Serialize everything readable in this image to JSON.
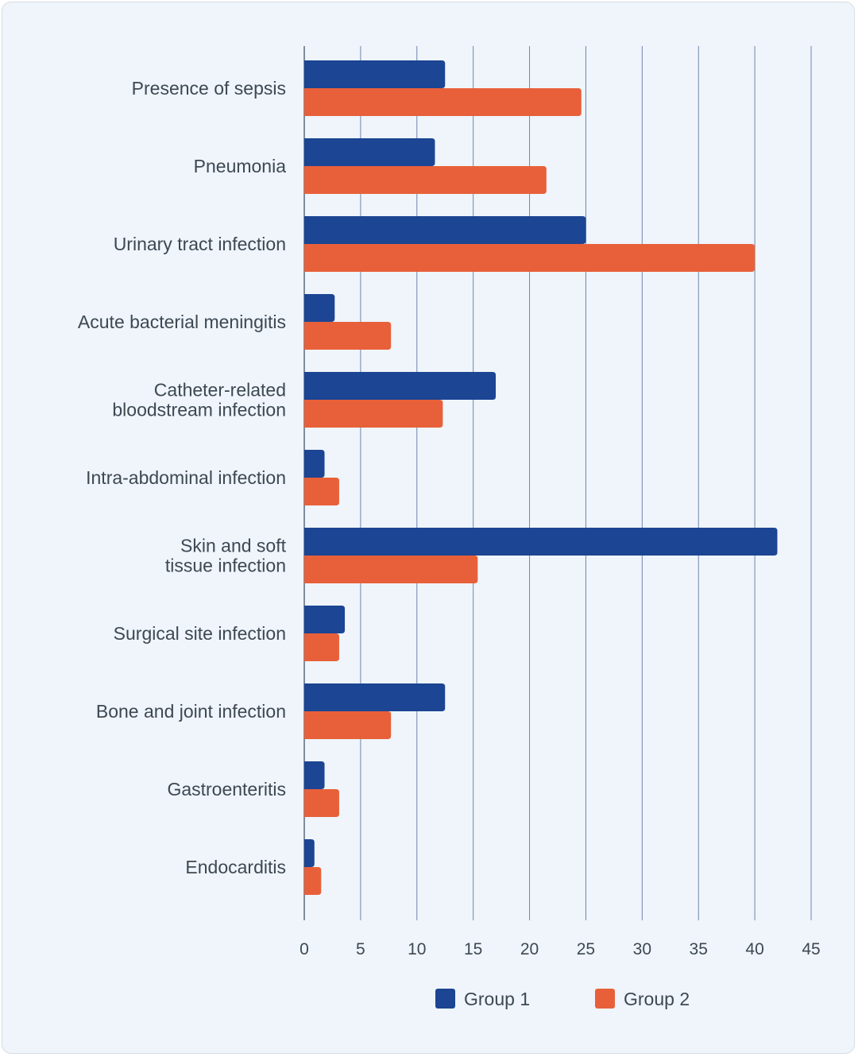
{
  "chart_data": {
    "type": "bar",
    "orientation": "horizontal",
    "categories": [
      [
        "Presence of sepsis"
      ],
      [
        "Pneumonia"
      ],
      [
        "Urinary tract infection"
      ],
      [
        "Acute bacterial meningitis"
      ],
      [
        "Catheter-related",
        "bloodstream infection"
      ],
      [
        "Intra-abdominal infection"
      ],
      [
        "Skin and soft",
        "tissue infection"
      ],
      [
        "Surgical site infection"
      ],
      [
        "Bone and joint infection"
      ],
      [
        "Gastroenteritis"
      ],
      [
        "Endocarditis"
      ]
    ],
    "series": [
      {
        "name": "Group 1",
        "color": "#1c4593",
        "values": [
          12.5,
          11.6,
          25,
          2.7,
          17,
          1.8,
          42,
          3.6,
          12.5,
          1.8,
          0.9
        ]
      },
      {
        "name": "Group 2",
        "color": "#e8603a",
        "values": [
          24.6,
          21.5,
          40,
          7.7,
          12.3,
          3.1,
          15.4,
          3.1,
          7.7,
          3.1,
          1.5
        ]
      }
    ],
    "xlim": [
      0,
      45
    ],
    "xticks": [
      0,
      5,
      10,
      15,
      20,
      25,
      30,
      35,
      40,
      45
    ],
    "grid": "vertical",
    "legend": "bottom"
  }
}
